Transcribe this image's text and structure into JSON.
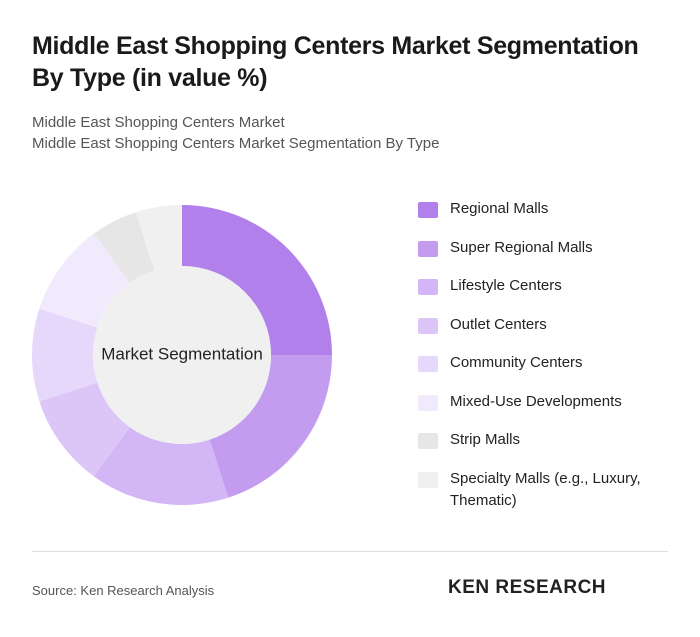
{
  "chart_data": {
    "type": "donut",
    "title": "Middle East Shopping Centers Market Segmentation By Type (in value %)",
    "subtitle": [
      "Middle East Shopping Centers Market",
      "Middle East Shopping Centers Market Segmentation By Type"
    ],
    "center_label": "Market Segmentation",
    "categories": [
      "Regional Malls",
      "Super Regional Malls",
      "Lifestyle Centers",
      "Outlet Centers",
      "Community Centers",
      "Mixed-Use Developments",
      "Strip Malls",
      "Specialty Malls (e.g., Luxury, Thematic)"
    ],
    "values": [
      25,
      20,
      15,
      10,
      10,
      10,
      5,
      5
    ],
    "colors": [
      "#b280ea",
      "#c39cf0",
      "#d3b6f5",
      "#dcc6f7",
      "#e6d8fa",
      "#f1eafc",
      "#e6e6e6",
      "#f0f0f0"
    ],
    "source": "Source: Ken Research Analysis",
    "brand": "KEN RESEARCH"
  }
}
